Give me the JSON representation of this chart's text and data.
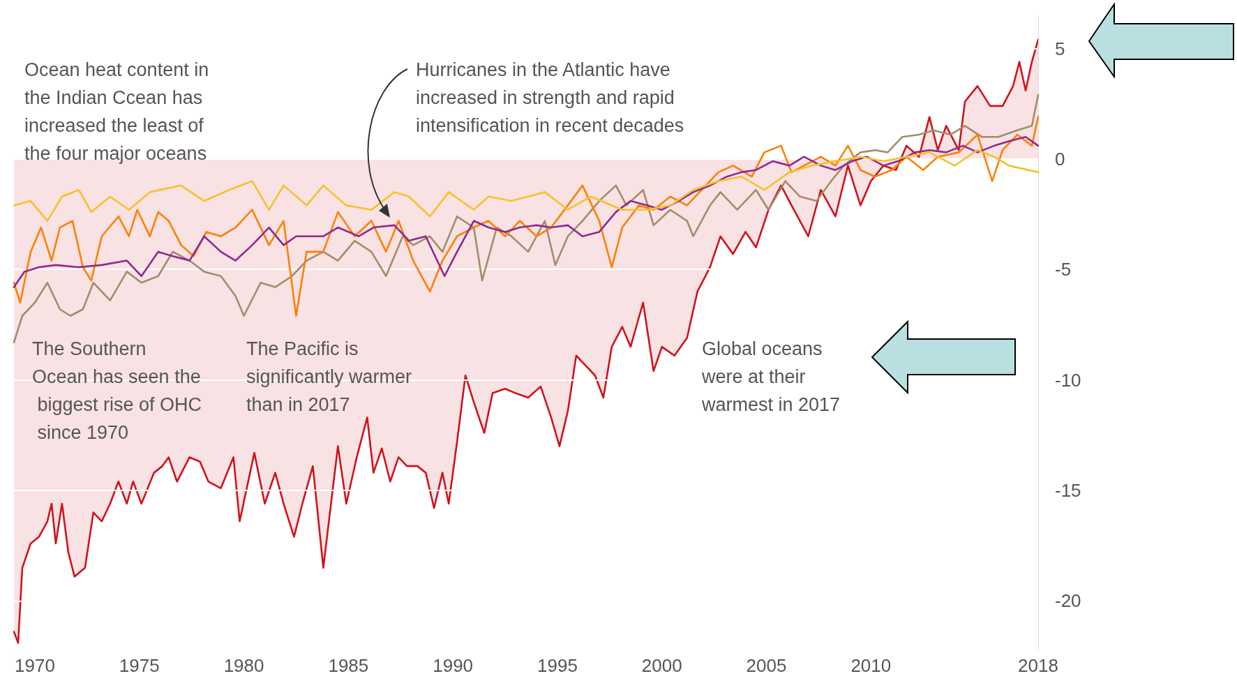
{
  "chart_data": {
    "type": "line",
    "xlim": [
      1969,
      2018
    ],
    "xticks": [
      1970,
      1975,
      1980,
      1985,
      1990,
      1995,
      2000,
      2005,
      2010,
      2018
    ],
    "ylim": [
      -22.2,
      6.5
    ],
    "yticks": [
      -20,
      -15,
      -10,
      -5,
      0,
      5
    ],
    "grid": "y",
    "line_style": "solid",
    "annotations": [
      "Ocean heat content in the Indian Ccean has increased the least of the four major oceans",
      "Hurricanes in the Atlantic have increased in strength and rapid intensification in recent decades",
      "The Southern Ocean has seen the biggest rise of OHC since 1970",
      "The Pacific is significantly warmer than in 2017",
      "Global oceans were at their warmest in 2017"
    ],
    "series": [
      {
        "type": "area",
        "color": "#d0121c",
        "x": [
          1969.0,
          1969.2,
          1969.4,
          1969.8,
          1970.2,
          1970.6,
          1970.8,
          1971.0,
          1971.3,
          1971.6,
          1971.9,
          1972.4,
          1972.8,
          1973.2,
          1973.6,
          1974.0,
          1974.4,
          1974.7,
          1975.1,
          1975.7,
          1976.1,
          1976.4,
          1976.8,
          1977.4,
          1977.9,
          1978.3,
          1978.9,
          1979.5,
          1979.8,
          1980.5,
          1981.0,
          1981.5,
          1981.9,
          1982.4,
          1982.8,
          1983.3,
          1983.8,
          1984.5,
          1984.9,
          1985.4,
          1985.9,
          1986.2,
          1986.6,
          1987.0,
          1987.4,
          1987.8,
          1988.3,
          1988.7,
          1989.1,
          1989.5,
          1989.8,
          1990.2,
          1990.6,
          1991.0,
          1991.5,
          1991.9,
          1992.5,
          1993.0,
          1993.6,
          1994.2,
          1994.7,
          1995.1,
          1995.5,
          1995.9,
          1996.3,
          1996.8,
          1997.2,
          1997.6,
          1998.1,
          1998.5,
          1999.1,
          1999.6,
          2000.0,
          2000.6,
          2001.2,
          2001.7,
          2002.3,
          2002.8,
          2003.4,
          2004.0,
          2004.5,
          2005.1,
          2005.7,
          2006.2,
          2007.0,
          2007.6,
          2008.3,
          2008.9,
          2009.5,
          2010.0,
          2010.6,
          2011.2,
          2011.7,
          2012.3,
          2012.8,
          2013.2,
          2013.6,
          2014.2,
          2014.5,
          2015.1,
          2015.7,
          2016.3,
          2016.8,
          2017.1,
          2017.4,
          2017.7,
          2018.0
        ],
        "values": [
          -21.4,
          -21.9,
          -18.5,
          -17.4,
          -17.1,
          -16.4,
          -15.6,
          -17.4,
          -15.6,
          -17.8,
          -18.9,
          -18.5,
          -16.0,
          -16.4,
          -15.6,
          -14.6,
          -15.6,
          -14.6,
          -15.6,
          -14.2,
          -13.9,
          -13.5,
          -14.6,
          -13.5,
          -13.7,
          -14.6,
          -14.9,
          -13.5,
          -16.4,
          -13.3,
          -15.6,
          -14.2,
          -15.6,
          -17.1,
          -15.6,
          -13.9,
          -18.5,
          -13.0,
          -15.6,
          -13.5,
          -11.7,
          -14.2,
          -13.1,
          -14.6,
          -13.5,
          -13.9,
          -13.9,
          -14.2,
          -15.8,
          -14.2,
          -15.6,
          -12.8,
          -9.8,
          -11.0,
          -12.4,
          -10.6,
          -10.4,
          -10.6,
          -10.8,
          -10.3,
          -11.7,
          -13.0,
          -11.4,
          -8.9,
          -9.3,
          -9.8,
          -10.8,
          -8.5,
          -7.6,
          -8.5,
          -6.5,
          -9.6,
          -8.5,
          -8.9,
          -8.1,
          -6.0,
          -4.9,
          -3.5,
          -4.3,
          -3.3,
          -4.0,
          -2.3,
          -1.2,
          -2.1,
          -3.5,
          -1.4,
          -2.6,
          -0.3,
          -2.1,
          -1.0,
          -0.3,
          -0.5,
          0.6,
          0.1,
          1.9,
          0.4,
          1.5,
          0.4,
          2.6,
          3.3,
          2.4,
          2.4,
          3.3,
          4.4,
          3.1,
          4.4,
          5.4
        ]
      },
      {
        "color": "#a38c6c",
        "x": [
          1969.0,
          1969.4,
          1970.0,
          1970.6,
          1971.2,
          1971.7,
          1972.3,
          1972.8,
          1973.6,
          1974.4,
          1975.1,
          1975.9,
          1976.6,
          1977.4,
          1978.1,
          1978.9,
          1979.6,
          1980.0,
          1980.8,
          1981.5,
          1982.3,
          1983.0,
          1983.8,
          1984.5,
          1985.3,
          1986.1,
          1986.8,
          1987.6,
          1988.1,
          1988.9,
          1989.5,
          1990.2,
          1991.0,
          1991.4,
          1992.1,
          1992.8,
          1993.6,
          1994.4,
          1994.9,
          1995.5,
          1996.2,
          1997.0,
          1997.8,
          1998.3,
          1999.1,
          1999.6,
          2000.4,
          2001.2,
          2001.5,
          2002.3,
          2002.8,
          2003.6,
          2004.5,
          2005.1,
          2005.9,
          2006.6,
          2007.4,
          2008.1,
          2008.7,
          2009.5,
          2010.2,
          2010.8,
          2011.5,
          2012.3,
          2013.0,
          2013.8,
          2014.5,
          2015.3,
          2016.1,
          2017.0,
          2017.7,
          2018.0
        ],
        "values": [
          -8.3,
          -7.1,
          -6.5,
          -5.6,
          -6.8,
          -7.1,
          -6.8,
          -5.6,
          -6.4,
          -5.1,
          -5.6,
          -5.3,
          -4.2,
          -4.6,
          -5.1,
          -5.3,
          -6.2,
          -7.1,
          -5.6,
          -5.8,
          -5.3,
          -4.6,
          -4.2,
          -4.6,
          -3.7,
          -4.2,
          -5.3,
          -3.5,
          -3.9,
          -3.5,
          -4.2,
          -2.6,
          -3.1,
          -5.5,
          -3.1,
          -3.5,
          -4.2,
          -2.8,
          -4.8,
          -3.5,
          -2.8,
          -1.9,
          -1.2,
          -2.1,
          -1.4,
          -3.0,
          -2.3,
          -2.8,
          -3.5,
          -2.1,
          -1.5,
          -2.3,
          -1.4,
          -2.3,
          -1.0,
          -1.7,
          -1.9,
          -1.0,
          -0.3,
          0.3,
          0.4,
          0.3,
          1.0,
          1.1,
          1.3,
          1.1,
          1.5,
          1.0,
          1.0,
          1.3,
          1.5,
          2.9
        ]
      },
      {
        "color": "#ff7f00",
        "x": [
          1969.0,
          1969.3,
          1969.8,
          1970.3,
          1970.8,
          1971.2,
          1971.8,
          1972.3,
          1972.7,
          1973.2,
          1974.0,
          1974.5,
          1974.9,
          1975.5,
          1975.9,
          1976.4,
          1977.0,
          1977.6,
          1978.2,
          1978.9,
          1979.6,
          1980.4,
          1981.2,
          1981.9,
          1982.5,
          1983.0,
          1983.8,
          1984.5,
          1985.3,
          1986.1,
          1986.8,
          1987.4,
          1988.1,
          1988.9,
          1989.5,
          1990.2,
          1991.0,
          1991.7,
          1992.5,
          1993.2,
          1994.0,
          1994.7,
          1995.5,
          1996.2,
          1997.0,
          1997.6,
          1998.1,
          1998.9,
          1999.6,
          2000.4,
          2001.2,
          2001.9,
          2002.7,
          2003.4,
          2004.3,
          2004.9,
          2005.7,
          2006.2,
          2006.8,
          2007.6,
          2008.3,
          2008.9,
          2009.5,
          2010.2,
          2011.0,
          2011.7,
          2012.5,
          2013.2,
          2014.2,
          2015.1,
          2015.8,
          2016.3,
          2017.0,
          2017.7,
          2018.0
        ],
        "values": [
          -5.6,
          -6.5,
          -4.2,
          -3.1,
          -4.6,
          -3.1,
          -2.8,
          -4.9,
          -5.5,
          -3.5,
          -2.6,
          -3.5,
          -2.3,
          -3.5,
          -2.4,
          -2.8,
          -3.9,
          -4.4,
          -3.3,
          -3.5,
          -3.1,
          -2.3,
          -3.9,
          -2.8,
          -7.1,
          -4.2,
          -4.2,
          -2.4,
          -3.5,
          -2.8,
          -4.2,
          -2.8,
          -4.6,
          -6.0,
          -4.6,
          -3.5,
          -3.1,
          -2.8,
          -3.5,
          -2.8,
          -3.5,
          -3.1,
          -2.1,
          -1.2,
          -2.8,
          -4.9,
          -3.1,
          -2.1,
          -2.3,
          -1.7,
          -2.1,
          -1.4,
          -0.6,
          -0.3,
          -0.8,
          0.3,
          0.6,
          -0.6,
          -0.3,
          0.1,
          -0.3,
          0.6,
          -0.5,
          -0.8,
          -0.5,
          0.1,
          -0.5,
          0.1,
          0.3,
          1.1,
          -1.0,
          0.4,
          1.1,
          0.6,
          1.9
        ]
      },
      {
        "color": "#8e2a8f",
        "x": [
          1969.0,
          1969.5,
          1970.2,
          1971.0,
          1972.1,
          1973.2,
          1974.4,
          1975.1,
          1975.9,
          1976.6,
          1977.4,
          1978.1,
          1978.9,
          1979.6,
          1980.4,
          1981.2,
          1981.9,
          1982.5,
          1983.0,
          1983.8,
          1984.5,
          1985.5,
          1986.2,
          1987.2,
          1987.9,
          1988.7,
          1989.6,
          1990.2,
          1991.0,
          1991.7,
          1992.5,
          1993.2,
          1994.0,
          1994.7,
          1995.5,
          1996.2,
          1997.0,
          1997.8,
          1998.5,
          1999.3,
          2000.0,
          2000.8,
          2001.5,
          2002.3,
          2003.1,
          2003.8,
          2004.5,
          2005.3,
          2006.1,
          2006.8,
          2007.6,
          2008.3,
          2009.1,
          2009.8,
          2010.6,
          2011.3,
          2012.1,
          2012.8,
          2013.6,
          2014.4,
          2015.1,
          2015.9,
          2016.6,
          2017.4,
          2018.0
        ],
        "values": [
          -5.8,
          -5.1,
          -4.9,
          -4.8,
          -4.9,
          -4.8,
          -4.6,
          -5.3,
          -4.2,
          -4.4,
          -4.6,
          -3.5,
          -4.2,
          -4.6,
          -3.9,
          -3.1,
          -3.9,
          -3.5,
          -3.5,
          -3.5,
          -3.1,
          -3.5,
          -3.1,
          -3.0,
          -3.7,
          -3.5,
          -5.3,
          -4.2,
          -2.8,
          -3.1,
          -3.3,
          -3.1,
          -3.0,
          -3.1,
          -3.0,
          -3.5,
          -3.3,
          -2.4,
          -1.9,
          -2.1,
          -2.3,
          -1.9,
          -1.5,
          -1.2,
          -0.8,
          -0.6,
          -0.5,
          -0.1,
          -0.3,
          0.1,
          -0.3,
          -0.5,
          -0.1,
          0.1,
          -0.3,
          -0.1,
          0.3,
          0.4,
          0.3,
          0.6,
          0.3,
          0.6,
          0.8,
          1.0,
          0.6
        ]
      },
      {
        "color": "#f5c22c",
        "x": [
          1969.0,
          1969.8,
          1970.6,
          1971.3,
          1972.1,
          1972.7,
          1973.6,
          1974.5,
          1975.5,
          1977.0,
          1978.1,
          1979.3,
          1980.4,
          1981.2,
          1981.9,
          1983.0,
          1983.8,
          1984.9,
          1986.1,
          1987.2,
          1987.9,
          1988.9,
          1989.8,
          1991.0,
          1991.7,
          1992.8,
          1994.4,
          1995.5,
          1996.6,
          1998.1,
          1999.3,
          2000.4,
          2001.5,
          2002.7,
          2003.8,
          2004.9,
          2006.1,
          2007.2,
          2008.3,
          2009.5,
          2010.6,
          2011.7,
          2012.8,
          2014.0,
          2015.1,
          2015.9,
          2016.6,
          2018.0
        ],
        "values": [
          -2.1,
          -1.9,
          -2.8,
          -1.7,
          -1.4,
          -2.4,
          -1.7,
          -2.3,
          -1.5,
          -1.2,
          -1.9,
          -1.4,
          -1.0,
          -2.3,
          -1.2,
          -2.1,
          -1.2,
          -2.1,
          -2.3,
          -1.5,
          -1.7,
          -2.6,
          -1.5,
          -2.3,
          -1.7,
          -1.9,
          -1.5,
          -2.3,
          -1.7,
          -2.3,
          -2.3,
          -2.1,
          -1.4,
          -1.0,
          -0.8,
          -1.4,
          -0.6,
          -0.3,
          -0.1,
          0.1,
          -0.1,
          0.1,
          0.3,
          -0.3,
          0.4,
          0.1,
          -0.3,
          -0.6
        ]
      }
    ]
  }
}
